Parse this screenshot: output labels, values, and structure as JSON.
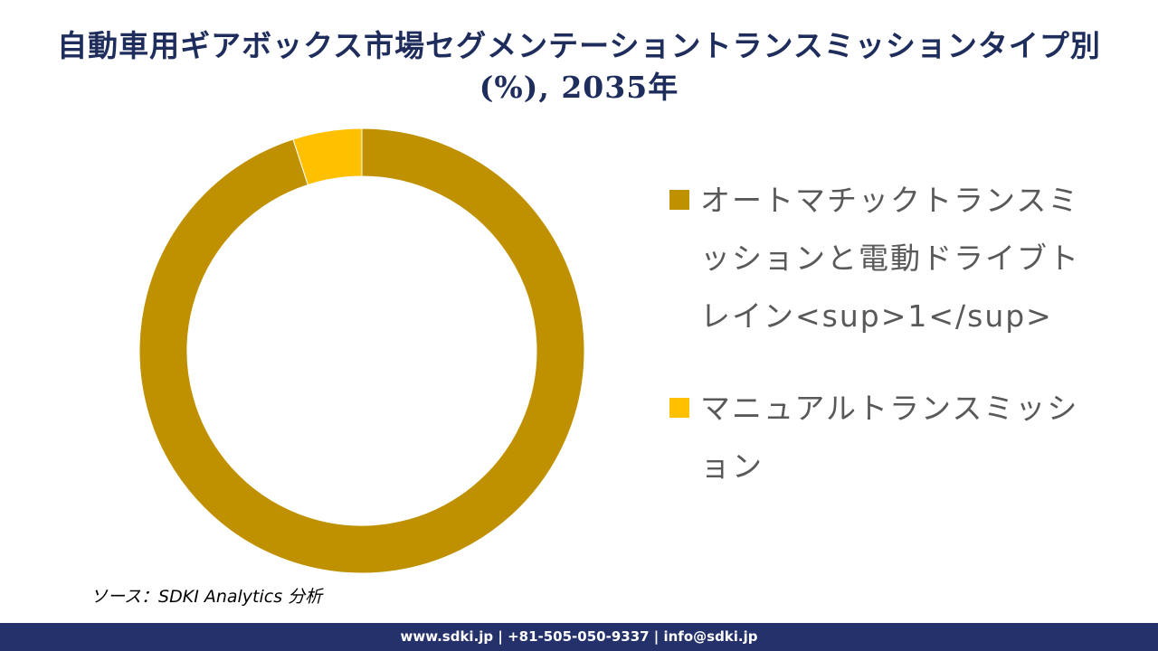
{
  "chart_data": {
    "type": "pie",
    "style": "donut",
    "title": "自動車用ギアボックス市場セグメンテーショントランスミッションタイプ別(%), 2035年",
    "series": [
      {
        "name": "オートマチックトランスミッションと電動ドライブトレイン<sup>1</sup>",
        "value": 95,
        "color": "#bf9000"
      },
      {
        "name": "マニュアルトランスミッション",
        "value": 5,
        "color": "#ffc000"
      }
    ],
    "legend_position": "right",
    "start_angle_deg": 0,
    "direction": "clockwise"
  },
  "source_text": "ソース：SDKI Analytics 分析",
  "footer_text": "www.sdki.jp | +81-505-050-9337 | info@sdki.jp"
}
